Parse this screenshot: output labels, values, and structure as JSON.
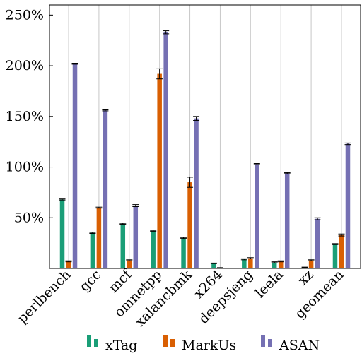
{
  "chart_data": {
    "type": "bar",
    "title": "",
    "xlabel": "",
    "ylabel": "",
    "ylim": [
      0,
      260
    ],
    "y_ticks": [
      50,
      100,
      150,
      200,
      250
    ],
    "y_tick_labels": [
      "50%",
      "100%",
      "150%",
      "200%",
      "250%"
    ],
    "grid": "vertical",
    "legend_position": "bottom",
    "categories": [
      "perlbench",
      "gcc",
      "mcf",
      "omnetpp",
      "xalancbmk",
      "x264",
      "deepsjeng",
      "leela",
      "xz",
      "geomean"
    ],
    "series": [
      {
        "name": "xTag",
        "color": "#1a9e77",
        "values": [
          68,
          35,
          44,
          37,
          30,
          5,
          9,
          6,
          1,
          24
        ],
        "errors": [
          0.5,
          0.5,
          0.5,
          0.5,
          0.5,
          0.3,
          0.5,
          0.5,
          0.3,
          0.5
        ]
      },
      {
        "name": "MarkUs",
        "color": "#d95f02",
        "values": [
          7,
          60,
          8,
          192,
          85,
          0.5,
          10,
          7,
          8,
          33
        ],
        "errors": [
          0.5,
          0.5,
          0.5,
          5,
          5,
          0.3,
          0.6,
          0.5,
          0.5,
          1
        ]
      },
      {
        "name": "ASAN",
        "color": "#7570b3",
        "values": [
          202,
          156,
          62,
          233,
          148,
          0,
          103,
          94,
          49,
          123
        ],
        "errors": [
          0.5,
          0.5,
          1,
          1.5,
          2,
          0,
          0.5,
          0.5,
          1,
          0.8
        ]
      }
    ]
  }
}
